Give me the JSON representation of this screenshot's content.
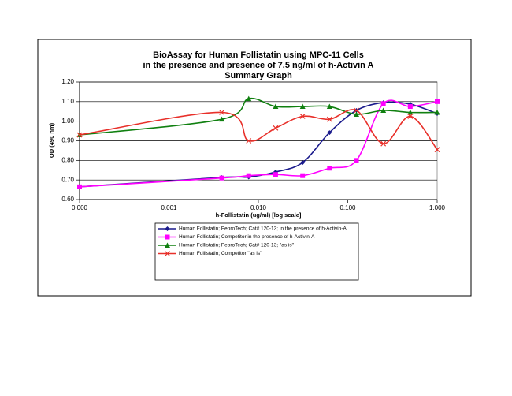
{
  "chart_data": {
    "type": "line",
    "title": [
      "BioAssay for Human Follistatin using  MPC-11 Cells",
      "in the presence and presence of 7.5 ng/ml of h-Activin A",
      "Summary Graph"
    ],
    "x_label": "h-Follistatin (ug/ml) [log scale]",
    "y_label": "OD (490 nm)",
    "x": [
      0.0001,
      0.0039,
      0.0078,
      0.0156,
      0.03125,
      0.0625,
      0.125,
      0.25,
      0.5,
      1
    ],
    "xscale": "log",
    "xlim": [
      0.0001,
      1
    ],
    "xticks": [
      {
        "value": 0.0001,
        "label": "0.000"
      },
      {
        "value": 0.001,
        "label": "0.001"
      },
      {
        "value": 0.01,
        "label": "0.010"
      },
      {
        "value": 0.1,
        "label": "0.100"
      },
      {
        "value": 1,
        "label": "1.000"
      }
    ],
    "ylim": [
      0.6,
      1.2
    ],
    "yticks": [
      {
        "value": 0.6,
        "label": "0.60"
      },
      {
        "value": 0.7,
        "label": "0.70"
      },
      {
        "value": 0.8,
        "label": "0.80"
      },
      {
        "value": 0.9,
        "label": "0.90"
      },
      {
        "value": 1,
        "label": "1.00"
      },
      {
        "value": 1.1,
        "label": "1.10"
      },
      {
        "value": 1.2,
        "label": "1.20"
      }
    ],
    "grid": true,
    "smooth": true,
    "series": [
      {
        "name": "Human Follistatin;  PeproTech; Cat# 120-13; in the presence of h-Activin-A",
        "color": "#1a1a8c",
        "marker": "diamond",
        "values": [
          0.665,
          0.713,
          0.715,
          0.741,
          0.789,
          0.942,
          1.055,
          1.095,
          1.087,
          1.039
        ]
      },
      {
        "name": "Human Follistatin; Competitor in the presence of h-Activin-A",
        "color": "#ff00ff",
        "marker": "square",
        "values": [
          0.665,
          0.71,
          0.722,
          0.728,
          0.722,
          0.76,
          0.8,
          1.09,
          1.075,
          1.1
        ]
      },
      {
        "name": "Human Follistatin;  PeproTech; Cat# 120-13; \"as is\"",
        "color": "#108010",
        "marker": "triangle",
        "values": [
          0.93,
          1.01,
          1.115,
          1.075,
          1.075,
          1.075,
          1.035,
          1.055,
          1.045,
          1.045
        ]
      },
      {
        "name": "Human Follistatin; Competitor \"as is\"",
        "color": "#e8302a",
        "marker": "x",
        "values": [
          0.93,
          1.045,
          0.9,
          0.965,
          1.025,
          1.01,
          1.055,
          0.885,
          1.025,
          0.855
        ]
      }
    ]
  }
}
